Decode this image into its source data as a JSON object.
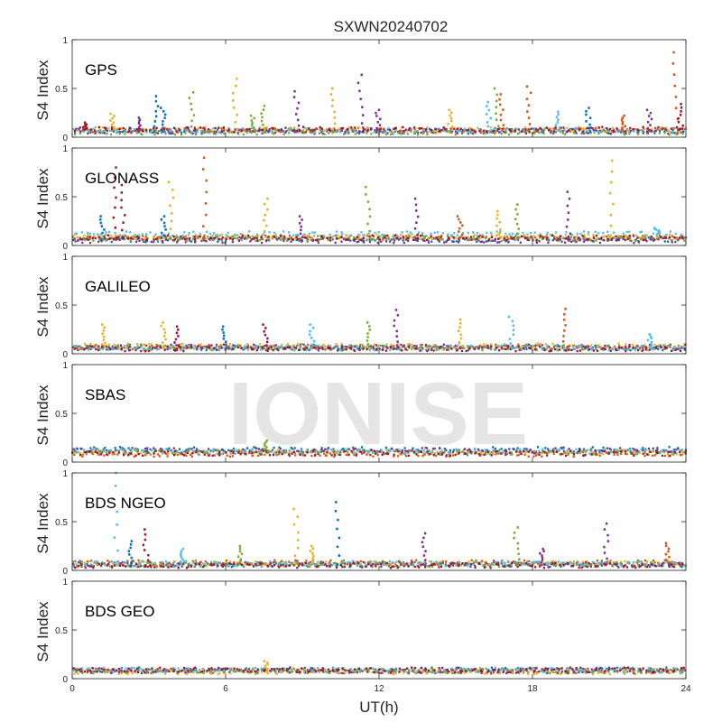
{
  "chart_data": {
    "type": "scatter",
    "title": "SXWN20240702",
    "xlabel": "UT(h)",
    "ylabel": "S4 Index",
    "xlim": [
      0,
      24
    ],
    "ylim": [
      0,
      1
    ],
    "xticks": [
      0,
      6,
      12,
      18,
      24
    ],
    "xtick_labels": [
      "0",
      "6",
      "12",
      "18",
      "24"
    ],
    "yticks": [
      0,
      0.5,
      1
    ],
    "ytick_labels": [
      "0",
      "0.5",
      "1"
    ],
    "grid": false,
    "series_colors": [
      "#0072BD",
      "#D95319",
      "#EDB120",
      "#7E2F8E",
      "#77AC30",
      "#4DBEEE",
      "#A2142F"
    ],
    "watermark": "IONISE",
    "panels": [
      {
        "label": "GPS",
        "baseline": [
          0.06,
          0.07,
          0.08,
          0.06,
          0.05,
          0.07,
          0.08
        ],
        "spikes": [
          {
            "x": 0.5,
            "y": 0.15,
            "series": 6
          },
          {
            "x": 1.6,
            "y": 0.24,
            "series": 2
          },
          {
            "x": 2.6,
            "y": 0.2,
            "series": 3
          },
          {
            "x": 3.3,
            "y": 0.42,
            "series": 0
          },
          {
            "x": 3.6,
            "y": 0.3,
            "series": 0
          },
          {
            "x": 4.7,
            "y": 0.46,
            "series": 4
          },
          {
            "x": 6.4,
            "y": 0.6,
            "series": 2
          },
          {
            "x": 7.1,
            "y": 0.22,
            "series": 4
          },
          {
            "x": 7.5,
            "y": 0.32,
            "series": 4
          },
          {
            "x": 8.8,
            "y": 0.47,
            "series": 3
          },
          {
            "x": 10.2,
            "y": 0.5,
            "series": 2
          },
          {
            "x": 11.3,
            "y": 0.64,
            "series": 3
          },
          {
            "x": 12.0,
            "y": 0.28,
            "series": 3
          },
          {
            "x": 14.8,
            "y": 0.28,
            "series": 2
          },
          {
            "x": 16.3,
            "y": 0.36,
            "series": 5
          },
          {
            "x": 16.6,
            "y": 0.5,
            "series": 4
          },
          {
            "x": 16.8,
            "y": 0.44,
            "series": 1
          },
          {
            "x": 17.9,
            "y": 0.52,
            "series": 1
          },
          {
            "x": 19.0,
            "y": 0.26,
            "series": 5
          },
          {
            "x": 20.2,
            "y": 0.3,
            "series": 0
          },
          {
            "x": 21.6,
            "y": 0.22,
            "series": 1
          },
          {
            "x": 22.6,
            "y": 0.28,
            "series": 3
          },
          {
            "x": 23.6,
            "y": 0.87,
            "series": 1
          },
          {
            "x": 23.8,
            "y": 0.34,
            "series": 6
          }
        ]
      },
      {
        "label": "GLONASS",
        "baseline": [
          0.06,
          0.08,
          0.09,
          0.05,
          0.07,
          0.12,
          0.08
        ],
        "spikes": [
          {
            "x": 1.2,
            "y": 0.3,
            "series": 0
          },
          {
            "x": 1.7,
            "y": 0.8,
            "series": 6
          },
          {
            "x": 2.0,
            "y": 0.62,
            "series": 6
          },
          {
            "x": 3.6,
            "y": 0.3,
            "series": 0
          },
          {
            "x": 3.9,
            "y": 0.65,
            "series": 2
          },
          {
            "x": 5.2,
            "y": 0.9,
            "series": 1
          },
          {
            "x": 7.6,
            "y": 0.48,
            "series": 2
          },
          {
            "x": 9.0,
            "y": 0.3,
            "series": 3
          },
          {
            "x": 11.6,
            "y": 0.6,
            "series": 4
          },
          {
            "x": 13.5,
            "y": 0.48,
            "series": 3
          },
          {
            "x": 15.2,
            "y": 0.3,
            "series": 1
          },
          {
            "x": 16.7,
            "y": 0.35,
            "series": 2
          },
          {
            "x": 17.4,
            "y": 0.42,
            "series": 4
          },
          {
            "x": 19.4,
            "y": 0.55,
            "series": 3
          },
          {
            "x": 21.1,
            "y": 0.87,
            "series": 2
          },
          {
            "x": 22.9,
            "y": 0.18,
            "series": 5
          }
        ]
      },
      {
        "label": "GALILEO",
        "baseline": [
          0.06,
          0.07,
          0.08,
          0.07,
          0.06,
          0.06,
          0.05
        ],
        "spikes": [
          {
            "x": 1.3,
            "y": 0.3,
            "series": 2
          },
          {
            "x": 3.6,
            "y": 0.32,
            "series": 2
          },
          {
            "x": 4.1,
            "y": 0.28,
            "series": 6
          },
          {
            "x": 6.0,
            "y": 0.28,
            "series": 0
          },
          {
            "x": 7.6,
            "y": 0.3,
            "series": 6
          },
          {
            "x": 9.4,
            "y": 0.3,
            "series": 5
          },
          {
            "x": 11.6,
            "y": 0.32,
            "series": 4
          },
          {
            "x": 12.7,
            "y": 0.45,
            "series": 3
          },
          {
            "x": 15.2,
            "y": 0.35,
            "series": 2
          },
          {
            "x": 17.2,
            "y": 0.38,
            "series": 5
          },
          {
            "x": 19.3,
            "y": 0.46,
            "series": 1
          },
          {
            "x": 22.6,
            "y": 0.2,
            "series": 5
          }
        ]
      },
      {
        "label": "SBAS",
        "baseline": [
          0.13,
          0.08,
          0.1,
          0.12,
          0.1,
          0.11,
          0.09
        ],
        "spikes": [
          {
            "x": 7.6,
            "y": 0.22,
            "series": 4
          }
        ]
      },
      {
        "label": "BDS NGEO",
        "baseline": [
          0.06,
          0.08,
          0.07,
          0.06,
          0.06,
          0.07,
          0.05
        ],
        "spikes": [
          {
            "x": 1.7,
            "y": 1.0,
            "series": 5
          },
          {
            "x": 2.3,
            "y": 0.3,
            "series": 0
          },
          {
            "x": 2.9,
            "y": 0.42,
            "series": 6
          },
          {
            "x": 4.3,
            "y": 0.22,
            "series": 5
          },
          {
            "x": 6.6,
            "y": 0.25,
            "series": 4
          },
          {
            "x": 8.8,
            "y": 0.63,
            "series": 2
          },
          {
            "x": 9.4,
            "y": 0.25,
            "series": 2
          },
          {
            "x": 10.4,
            "y": 0.7,
            "series": 0
          },
          {
            "x": 13.8,
            "y": 0.38,
            "series": 3
          },
          {
            "x": 17.4,
            "y": 0.44,
            "series": 4
          },
          {
            "x": 18.4,
            "y": 0.22,
            "series": 3
          },
          {
            "x": 20.9,
            "y": 0.48,
            "series": 3
          },
          {
            "x": 23.3,
            "y": 0.28,
            "series": 1
          }
        ]
      },
      {
        "label": "BDS GEO",
        "baseline": [
          0.09,
          0.08,
          0.07,
          0.08,
          0.08,
          0.09,
          0.09
        ],
        "spikes": [
          {
            "x": 7.6,
            "y": 0.18,
            "series": 2
          }
        ]
      }
    ]
  }
}
